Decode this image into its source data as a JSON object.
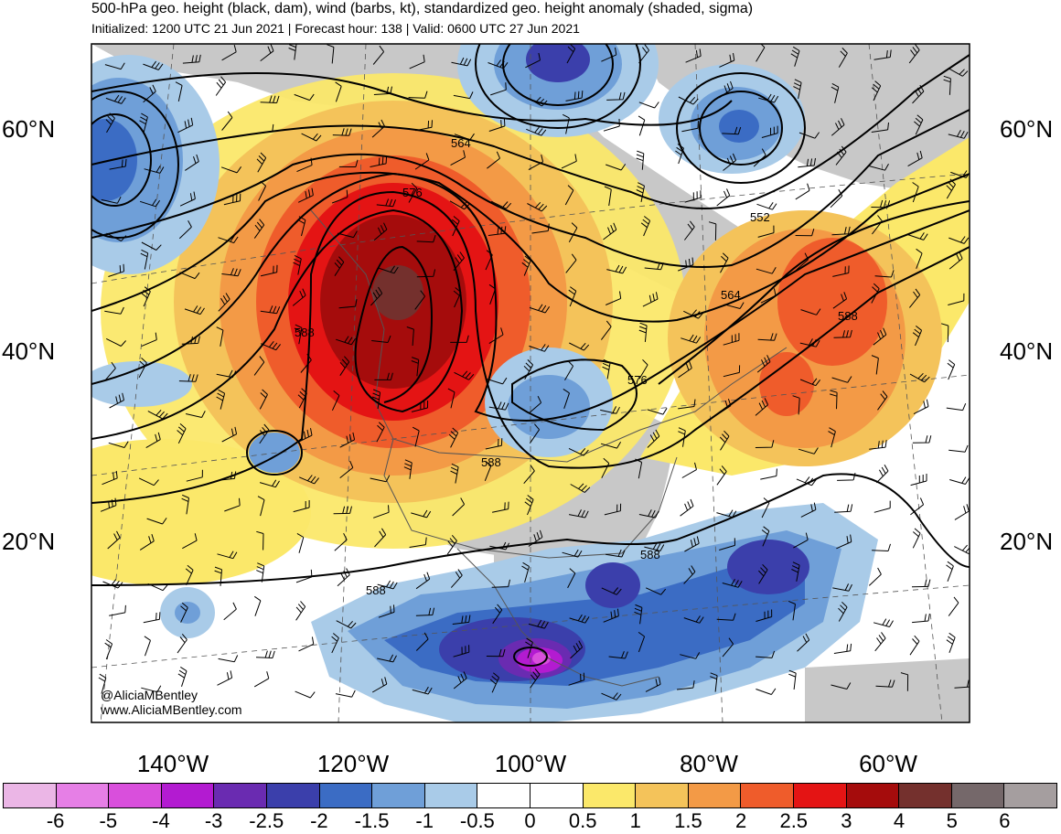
{
  "title": "500-hPa geo. height (black, dam), wind (barbs, kt), standardized geo. height anomaly (shaded, sigma)",
  "subtitle": "Initialized: 1200 UTC 21 Jun 2021 | Forecast hour: 138 | Valid: 0600 UTC 27 Jun 2021",
  "credits": {
    "twitter": "@AliciaMBentley",
    "website": "www.AliciaMBentley.com"
  },
  "lat_labels": [
    "60°N",
    "40°N",
    "20°N"
  ],
  "lon_labels": [
    "140°W",
    "120°W",
    "100°W",
    "80°W",
    "60°W"
  ],
  "contour_labels": [
    "564",
    "576",
    "552",
    "564",
    "588",
    "588",
    "576",
    "588",
    "588",
    "588"
  ],
  "colorbar": {
    "ticks": [
      "-6",
      "-5",
      "-4",
      "-3",
      "-2.5",
      "-2",
      "-1.5",
      "-1",
      "-0.5",
      "0",
      "0.5",
      "1",
      "1.5",
      "2",
      "2.5",
      "3",
      "4",
      "5",
      "6"
    ],
    "colors": [
      "#ebb6e6",
      "#e67fe6",
      "#d94fdc",
      "#b31bd1",
      "#6a2bb1",
      "#3b3fab",
      "#3b6cc4",
      "#6f9fd8",
      "#a9cbe8",
      "#ffffff",
      "#ffffff",
      "#fbe86a",
      "#f4c35a",
      "#f39a46",
      "#ef5c2b",
      "#e41414",
      "#a50c0c",
      "#74302d",
      "#75686a",
      "#a59e9f"
    ]
  },
  "colors": {
    "land": "#c8c8c8",
    "ridge_core": "#a50c0c",
    "trough": "#3b6cc4"
  }
}
